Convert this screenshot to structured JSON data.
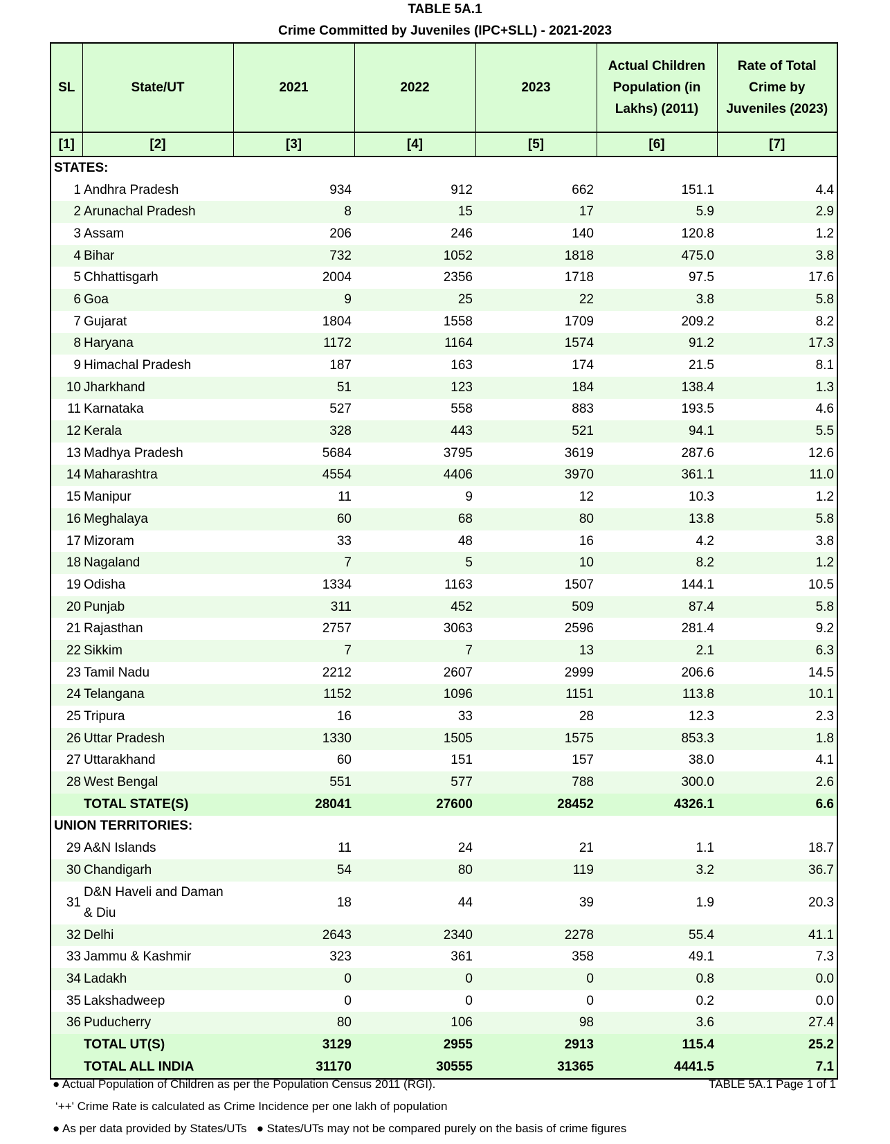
{
  "title": "TABLE 5A.1",
  "subtitle": "Crime Committed by Juveniles (IPC+SLL) - 2021-2023",
  "headers": [
    "SL",
    "State/UT",
    "2021",
    "2022",
    "2023",
    "Actual Children Population (in Lakhs) (2011)",
    "Rate of Total Crime by Juveniles (2023)"
  ],
  "col_index": [
    "[1]",
    "[2]",
    "[3]",
    "[4]",
    "[5]",
    "[6]",
    "[7]"
  ],
  "sections": [
    {
      "label": "STATES:",
      "rows": [
        [
          "1",
          "Andhra Pradesh",
          "934",
          "912",
          "662",
          "151.1",
          "4.4"
        ],
        [
          "2",
          "Arunachal Pradesh",
          "8",
          "15",
          "17",
          "5.9",
          "2.9"
        ],
        [
          "3",
          "Assam",
          "206",
          "246",
          "140",
          "120.8",
          "1.2"
        ],
        [
          "4",
          "Bihar",
          "732",
          "1052",
          "1818",
          "475.0",
          "3.8"
        ],
        [
          "5",
          "Chhattisgarh",
          "2004",
          "2356",
          "1718",
          "97.5",
          "17.6"
        ],
        [
          "6",
          "Goa",
          "9",
          "25",
          "22",
          "3.8",
          "5.8"
        ],
        [
          "7",
          "Gujarat",
          "1804",
          "1558",
          "1709",
          "209.2",
          "8.2"
        ],
        [
          "8",
          "Haryana",
          "1172",
          "1164",
          "1574",
          "91.2",
          "17.3"
        ],
        [
          "9",
          "Himachal Pradesh",
          "187",
          "163",
          "174",
          "21.5",
          "8.1"
        ],
        [
          "10",
          "Jharkhand",
          "51",
          "123",
          "184",
          "138.4",
          "1.3"
        ],
        [
          "11",
          "Karnataka",
          "527",
          "558",
          "883",
          "193.5",
          "4.6"
        ],
        [
          "12",
          "Kerala",
          "328",
          "443",
          "521",
          "94.1",
          "5.5"
        ],
        [
          "13",
          "Madhya Pradesh",
          "5684",
          "3795",
          "3619",
          "287.6",
          "12.6"
        ],
        [
          "14",
          "Maharashtra",
          "4554",
          "4406",
          "3970",
          "361.1",
          "11.0"
        ],
        [
          "15",
          "Manipur",
          "11",
          "9",
          "12",
          "10.3",
          "1.2"
        ],
        [
          "16",
          "Meghalaya",
          "60",
          "68",
          "80",
          "13.8",
          "5.8"
        ],
        [
          "17",
          "Mizoram",
          "33",
          "48",
          "16",
          "4.2",
          "3.8"
        ],
        [
          "18",
          "Nagaland",
          "7",
          "5",
          "10",
          "8.2",
          "1.2"
        ],
        [
          "19",
          "Odisha",
          "1334",
          "1163",
          "1507",
          "144.1",
          "10.5"
        ],
        [
          "20",
          "Punjab",
          "311",
          "452",
          "509",
          "87.4",
          "5.8"
        ],
        [
          "21",
          "Rajasthan",
          "2757",
          "3063",
          "2596",
          "281.4",
          "9.2"
        ],
        [
          "22",
          "Sikkim",
          "7",
          "7",
          "13",
          "2.1",
          "6.3"
        ],
        [
          "23",
          "Tamil Nadu",
          "2212",
          "2607",
          "2999",
          "206.6",
          "14.5"
        ],
        [
          "24",
          "Telangana",
          "1152",
          "1096",
          "1151",
          "113.8",
          "10.1"
        ],
        [
          "25",
          "Tripura",
          "16",
          "33",
          "28",
          "12.3",
          "2.3"
        ],
        [
          "26",
          "Uttar Pradesh",
          "1330",
          "1505",
          "1575",
          "853.3",
          "1.8"
        ],
        [
          "27",
          "Uttarakhand",
          "60",
          "151",
          "157",
          "38.0",
          "4.1"
        ],
        [
          "28",
          "West Bengal",
          "551",
          "577",
          "788",
          "300.0",
          "2.6"
        ]
      ],
      "totals": [
        [
          "TOTAL STATE(S)",
          "28041",
          "27600",
          "28452",
          "4326.1",
          "6.6"
        ]
      ]
    },
    {
      "label": "UNION TERRITORIES:",
      "rows": [
        [
          "29",
          "A&N Islands",
          "11",
          "24",
          "21",
          "1.1",
          "18.7"
        ],
        [
          "30",
          "Chandigarh",
          "54",
          "80",
          "119",
          "3.2",
          "36.7"
        ],
        [
          "31",
          "D&N Haveli and Daman & Diu",
          "18",
          "44",
          "39",
          "1.9",
          "20.3"
        ],
        [
          "32",
          "Delhi",
          "2643",
          "2340",
          "2278",
          "55.4",
          "41.1"
        ],
        [
          "33",
          "Jammu & Kashmir",
          "323",
          "361",
          "358",
          "49.1",
          "7.3"
        ],
        [
          "34",
          "Ladakh",
          "0",
          "0",
          "0",
          "0.8",
          "0.0"
        ],
        [
          "35",
          "Lakshadweep",
          "0",
          "0",
          "0",
          "0.2",
          "0.0"
        ],
        [
          "36",
          "Puducherry",
          "80",
          "106",
          "98",
          "3.6",
          "27.4"
        ]
      ],
      "totals": [
        [
          "TOTAL UT(S)",
          "3129",
          "2955",
          "2913",
          "115.4",
          "25.2"
        ],
        [
          "TOTAL ALL INDIA",
          "31170",
          "30555",
          "31365",
          "4441.5",
          "7.1"
        ]
      ]
    }
  ],
  "footnotes": {
    "note1": "● Actual Population of Children as per the Population Census 2011 (RGI).",
    "note2": "‘++' Crime Rate is calculated as Crime Incidence per one lakh of population",
    "note3": "● As per data provided by States/UTs   ● States/UTs may not be compared purely on the basis of crime figures",
    "page": "TABLE 5A.1 Page 1 of 1"
  },
  "colors": {
    "header_bg": "#d9fcd4",
    "stripe_bg": "#ebfbe8"
  }
}
